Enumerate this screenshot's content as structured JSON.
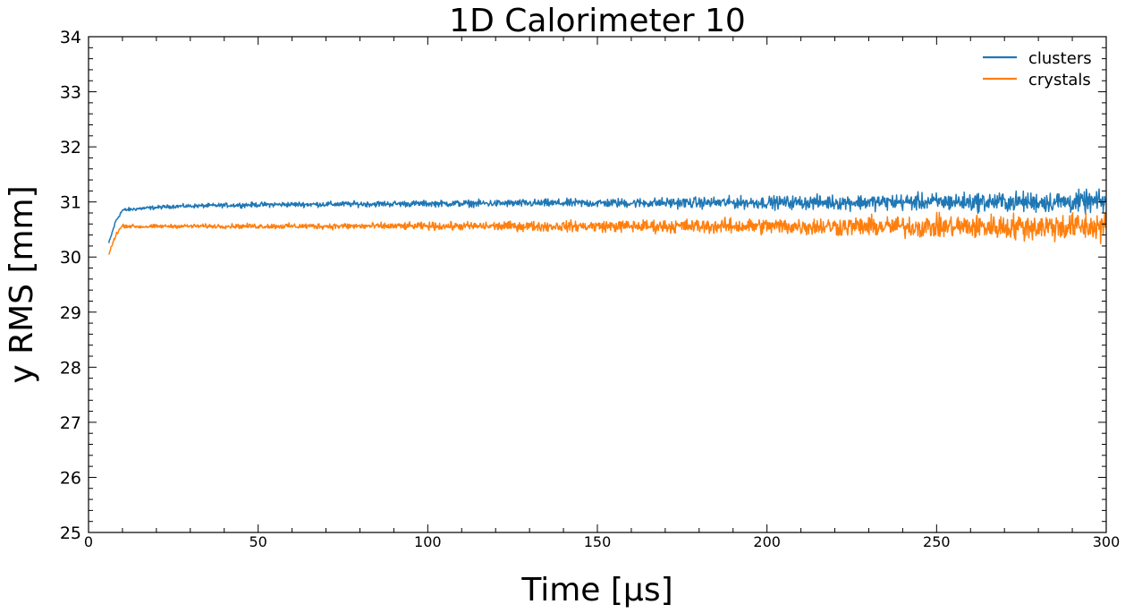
{
  "chart_data": {
    "type": "line",
    "title": "1D Calorimeter 10",
    "xlabel": "Time [µs]",
    "ylabel": "y RMS [mm]",
    "xlim": [
      0,
      300
    ],
    "ylim": [
      25,
      34
    ],
    "x_ticks": [
      "0",
      "50",
      "100",
      "150",
      "200",
      "250",
      "300"
    ],
    "y_ticks": [
      "25",
      "26",
      "27",
      "28",
      "29",
      "30",
      "31",
      "32",
      "33",
      "34"
    ],
    "grid": false,
    "legend_position": "top-right",
    "x_start": 6,
    "x_end": 300,
    "series": [
      {
        "name": "clusters",
        "color": "#1f77b4",
        "x": [
          6,
          8,
          10,
          15,
          25,
          50,
          100,
          150,
          200,
          250,
          300
        ],
        "y": [
          30.25,
          30.65,
          30.85,
          30.88,
          30.92,
          30.95,
          30.97,
          30.98,
          30.99,
          31.0,
          31.0
        ],
        "noise": [
          0.03,
          0.03,
          0.03,
          0.03,
          0.03,
          0.04,
          0.05,
          0.07,
          0.1,
          0.14,
          0.18
        ]
      },
      {
        "name": "crystals",
        "color": "#ff7f0e",
        "x": [
          6,
          8,
          10,
          15,
          25,
          50,
          100,
          150,
          200,
          250,
          300
        ],
        "y": [
          30.05,
          30.4,
          30.57,
          30.55,
          30.56,
          30.56,
          30.56,
          30.56,
          30.56,
          30.55,
          30.55
        ],
        "noise": [
          0.03,
          0.03,
          0.03,
          0.03,
          0.03,
          0.04,
          0.06,
          0.09,
          0.13,
          0.18,
          0.24
        ]
      }
    ]
  }
}
